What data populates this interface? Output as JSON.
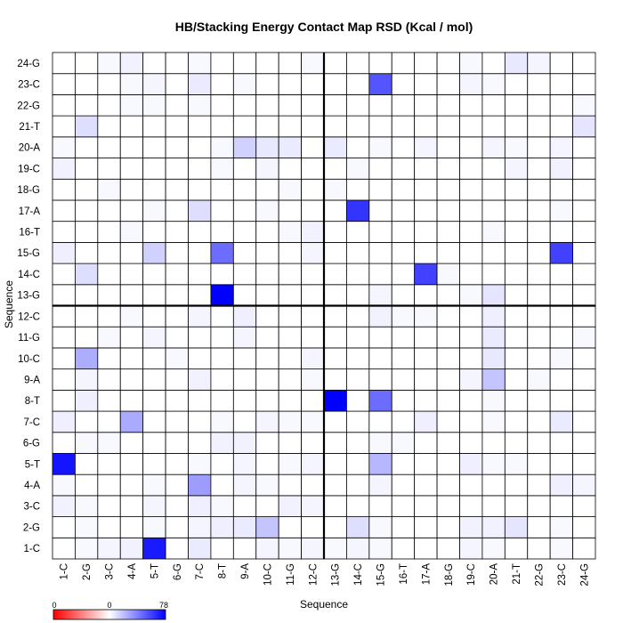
{
  "chart_data": {
    "type": "heatmap",
    "title": "HB/Stacking Energy Contact Map RSD (Kcal / mol)",
    "xlabel": "Sequence",
    "ylabel": "Sequence",
    "categories": [
      "1-C",
      "2-G",
      "3-C",
      "4-A",
      "5-T",
      "6-G",
      "7-C",
      "8-T",
      "9-A",
      "10-C",
      "11-G",
      "12-C",
      "13-G",
      "14-C",
      "15-G",
      "16-T",
      "17-A",
      "18-G",
      "19-C",
      "20-A",
      "21-T",
      "22-G",
      "23-C",
      "24-G"
    ],
    "colorbar": {
      "min": 0,
      "mid": 0,
      "max": 78,
      "tick_labels": [
        "0",
        "0",
        "78"
      ],
      "neg_color": "#ff0000",
      "zero_color": "#ffffff",
      "pos_color": "#0000ff"
    },
    "divider_after_index": 12,
    "values": [
      [
        0,
        2,
        3,
        4,
        70,
        0,
        6,
        0,
        0,
        3,
        2,
        3,
        2,
        3,
        2,
        0,
        0,
        0,
        3,
        2,
        0,
        0,
        2,
        0
      ],
      [
        0,
        2,
        0,
        0,
        2,
        0,
        3,
        5,
        6,
        18,
        0,
        0,
        0,
        10,
        2,
        0,
        0,
        0,
        4,
        4,
        8,
        0,
        2,
        0
      ],
      [
        4,
        2,
        0,
        0,
        3,
        0,
        5,
        2,
        0,
        0,
        4,
        3,
        0,
        0,
        0,
        0,
        0,
        0,
        0,
        0,
        0,
        0,
        0,
        0
      ],
      [
        2,
        0,
        0,
        0,
        2,
        0,
        30,
        0,
        3,
        2,
        0,
        0,
        0,
        0,
        3,
        0,
        0,
        0,
        0,
        0,
        0,
        0,
        5,
        3
      ],
      [
        72,
        0,
        0,
        0,
        0,
        0,
        2,
        0,
        3,
        0,
        2,
        3,
        0,
        0,
        22,
        0,
        0,
        0,
        5,
        2,
        2,
        0,
        0,
        0
      ],
      [
        0,
        2,
        2,
        0,
        0,
        0,
        0,
        4,
        4,
        0,
        0,
        0,
        0,
        0,
        2,
        2,
        0,
        0,
        0,
        0,
        0,
        0,
        0,
        0
      ],
      [
        5,
        0,
        0,
        26,
        0,
        0,
        0,
        2,
        0,
        3,
        2,
        2,
        0,
        0,
        0,
        0,
        5,
        0,
        0,
        2,
        0,
        0,
        6,
        0
      ],
      [
        0,
        5,
        0,
        0,
        0,
        0,
        0,
        0,
        0,
        0,
        0,
        0,
        78,
        0,
        45,
        0,
        0,
        0,
        0,
        2,
        0,
        0,
        0,
        0
      ],
      [
        0,
        3,
        0,
        0,
        0,
        0,
        4,
        0,
        0,
        0,
        0,
        2,
        0,
        0,
        0,
        0,
        0,
        0,
        3,
        18,
        0,
        2,
        0,
        0
      ],
      [
        0,
        25,
        0,
        0,
        0,
        2,
        0,
        0,
        0,
        0,
        0,
        3,
        0,
        0,
        0,
        0,
        0,
        0,
        0,
        7,
        0,
        0,
        2,
        0
      ],
      [
        0,
        0,
        2,
        0,
        3,
        0,
        0,
        0,
        3,
        0,
        0,
        0,
        0,
        0,
        0,
        0,
        0,
        0,
        0,
        6,
        0,
        0,
        0,
        2
      ],
      [
        0,
        0,
        0,
        2,
        0,
        0,
        3,
        0,
        5,
        0,
        0,
        0,
        0,
        0,
        4,
        2,
        2,
        0,
        0,
        5,
        0,
        0,
        0,
        0
      ],
      [
        0,
        0,
        0,
        0,
        0,
        0,
        0,
        78,
        0,
        0,
        0,
        0,
        0,
        0,
        3,
        0,
        0,
        0,
        2,
        8,
        0,
        0,
        0,
        0
      ],
      [
        0,
        10,
        0,
        0,
        0,
        0,
        0,
        0,
        0,
        0,
        0,
        0,
        0,
        0,
        0,
        0,
        58,
        2,
        0,
        0,
        0,
        0,
        0,
        0
      ],
      [
        5,
        0,
        0,
        0,
        14,
        0,
        0,
        45,
        0,
        0,
        0,
        3,
        0,
        0,
        0,
        0,
        0,
        0,
        0,
        0,
        0,
        0,
        58,
        0
      ],
      [
        0,
        0,
        0,
        2,
        0,
        0,
        0,
        0,
        0,
        0,
        2,
        4,
        0,
        0,
        0,
        0,
        0,
        0,
        0,
        2,
        0,
        0,
        0,
        0
      ],
      [
        0,
        0,
        0,
        0,
        2,
        0,
        10,
        0,
        0,
        2,
        0,
        0,
        0,
        62,
        0,
        0,
        0,
        0,
        0,
        0,
        0,
        0,
        2,
        0
      ],
      [
        0,
        0,
        2,
        0,
        0,
        0,
        0,
        0,
        0,
        0,
        2,
        0,
        2,
        0,
        0,
        0,
        0,
        0,
        0,
        0,
        0,
        0,
        0,
        0
      ],
      [
        4,
        0,
        0,
        0,
        0,
        0,
        0,
        2,
        0,
        3,
        0,
        0,
        0,
        2,
        0,
        0,
        0,
        0,
        0,
        0,
        3,
        0,
        4,
        0
      ],
      [
        2,
        0,
        0,
        0,
        0,
        0,
        0,
        2,
        14,
        7,
        6,
        0,
        6,
        0,
        2,
        0,
        3,
        0,
        0,
        3,
        2,
        0,
        3,
        0
      ],
      [
        0,
        10,
        0,
        0,
        0,
        0,
        0,
        0,
        0,
        0,
        0,
        0,
        0,
        0,
        0,
        0,
        0,
        0,
        0,
        0,
        0,
        0,
        0,
        8
      ],
      [
        0,
        0,
        0,
        2,
        2,
        0,
        2,
        0,
        0,
        0,
        0,
        0,
        0,
        0,
        0,
        0,
        0,
        0,
        0,
        0,
        0,
        0,
        0,
        2
      ],
      [
        0,
        0,
        0,
        2,
        3,
        0,
        6,
        0,
        2,
        0,
        0,
        0,
        0,
        0,
        52,
        0,
        0,
        0,
        3,
        2,
        0,
        0,
        0,
        0
      ],
      [
        0,
        0,
        2,
        4,
        0,
        0,
        2,
        0,
        0,
        0,
        0,
        2,
        0,
        0,
        0,
        0,
        0,
        0,
        2,
        0,
        7,
        3,
        0,
        0
      ]
    ]
  }
}
